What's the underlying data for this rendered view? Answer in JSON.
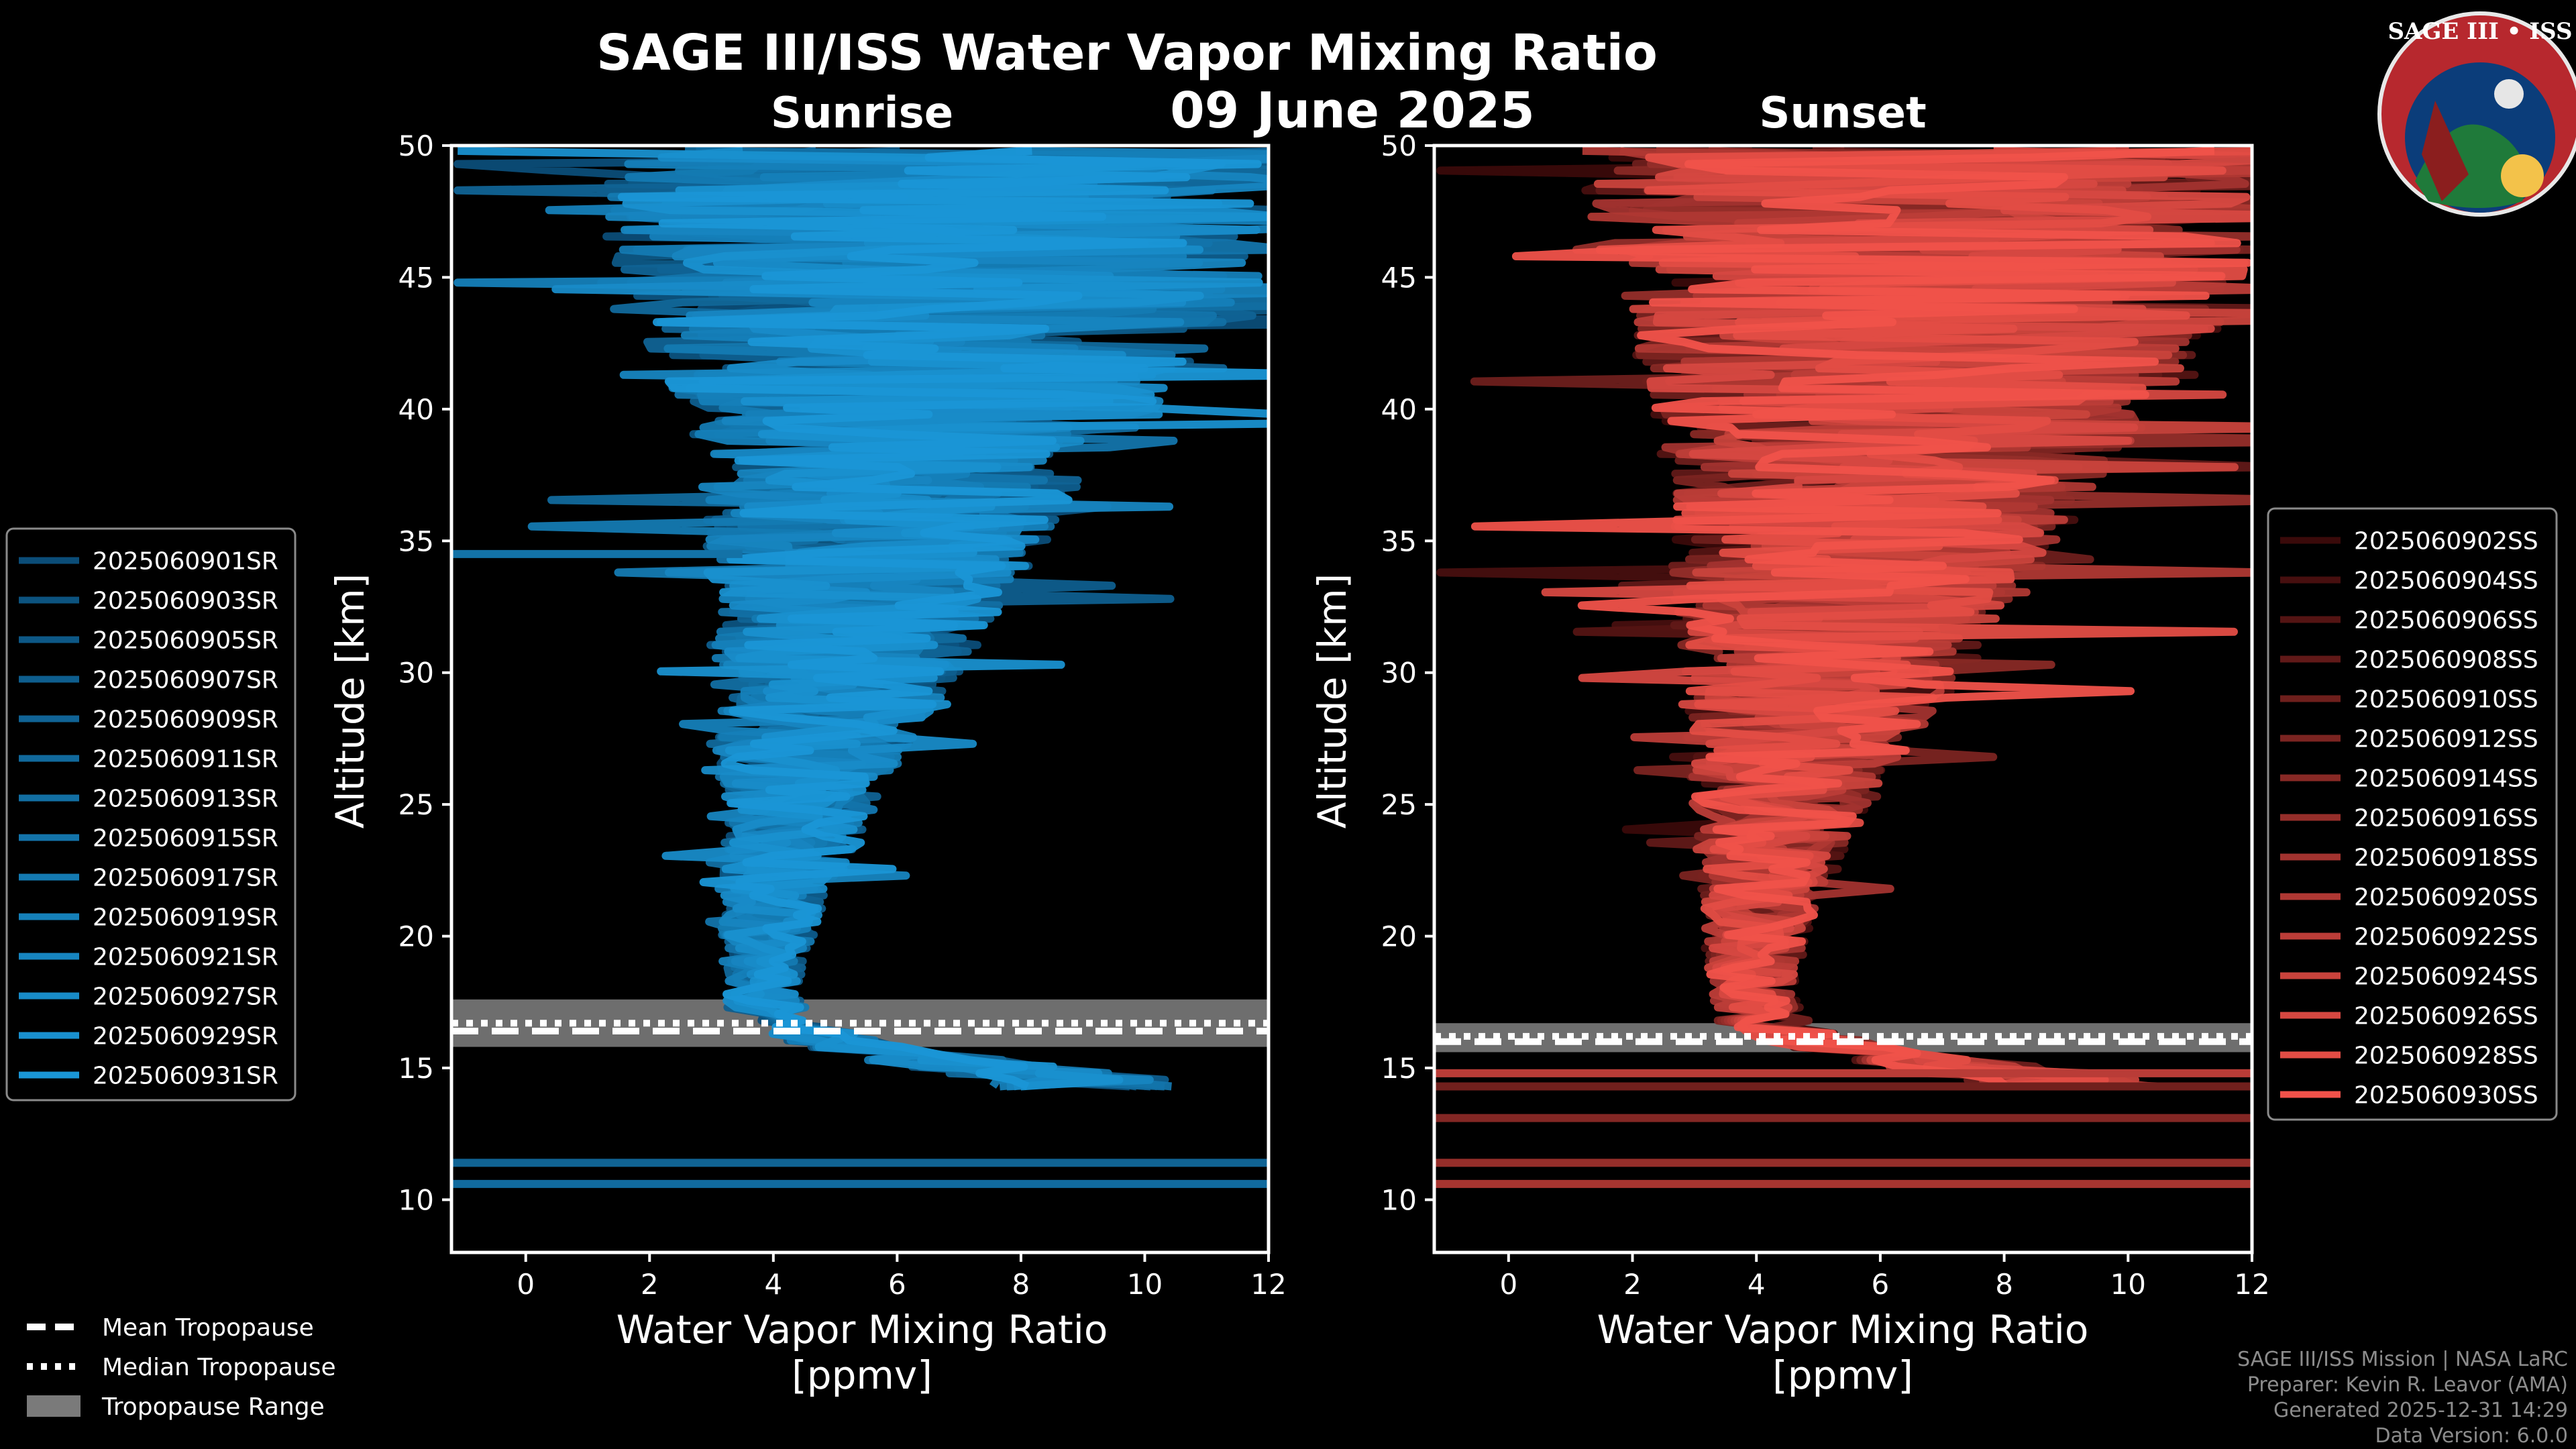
{
  "title": "SAGE III/ISS Water Vapor Mixing Ratio",
  "date": "09 June 2025",
  "logo": {
    "text": "SAGE III • ISS",
    "colors": {
      "ring": "#b7282e",
      "inner": "#0b3d7a"
    }
  },
  "credits": [
    "SAGE III/ISS Mission | NASA LaRC",
    "Preparer: Kevin R. Leavor (AMA)",
    "Generated 2025-12-31 14:29",
    "Data Version: 6.0.0"
  ],
  "tropo_legend": [
    {
      "label": "Mean Tropopause",
      "style": "dashed"
    },
    {
      "label": "Median Tropopause",
      "style": "dotted"
    },
    {
      "label": "Tropopause Range",
      "style": "box"
    }
  ],
  "chart_data": [
    {
      "type": "line",
      "panel": "sunrise",
      "title": "Sunrise",
      "xlabel": "Water Vapor Mixing Ratio\n[ppmv]",
      "ylabel": "Altitude [km]",
      "xlim": [
        -1.2,
        12
      ],
      "ylim": [
        8,
        50
      ],
      "xticks": [
        0,
        2,
        4,
        6,
        8,
        10,
        12
      ],
      "yticks": [
        10,
        15,
        20,
        25,
        30,
        35,
        40,
        45,
        50
      ],
      "color_dark": "#0b4d78",
      "color_light": "#1a96d6",
      "series": [
        "2025060901SR",
        "2025060903SR",
        "2025060905SR",
        "2025060907SR",
        "2025060909SR",
        "2025060911SR",
        "2025060913SR",
        "2025060915SR",
        "2025060917SR",
        "2025060919SR",
        "2025060921SR",
        "2025060927SR",
        "2025060929SR",
        "2025060931SR"
      ],
      "profile_median": [
        [
          14.5,
          9.0
        ],
        [
          15.0,
          7.5
        ],
        [
          15.5,
          6.0
        ],
        [
          16.0,
          5.0
        ],
        [
          16.5,
          4.3
        ],
        [
          17.0,
          3.9
        ],
        [
          18.0,
          3.8
        ],
        [
          20.0,
          3.9
        ],
        [
          22.0,
          4.1
        ],
        [
          25.0,
          4.4
        ],
        [
          28.0,
          4.7
        ],
        [
          30.0,
          5.0
        ],
        [
          33.0,
          5.4
        ],
        [
          36.0,
          5.8
        ],
        [
          39.0,
          6.2
        ],
        [
          42.0,
          6.5
        ],
        [
          45.0,
          6.8
        ],
        [
          48.0,
          6.9
        ],
        [
          50.0,
          7.0
        ]
      ],
      "profile_spread": [
        [
          14.5,
          1.5
        ],
        [
          16.0,
          0.8
        ],
        [
          18.0,
          0.6
        ],
        [
          22.0,
          0.9
        ],
        [
          26.0,
          1.4
        ],
        [
          30.0,
          2.0
        ],
        [
          34.0,
          2.6
        ],
        [
          38.0,
          3.2
        ],
        [
          42.0,
          4.5
        ],
        [
          46.0,
          5.5
        ],
        [
          50.0,
          6.0
        ]
      ],
      "flat_segments": [
        [
          11.4,
          -1.2,
          12
        ],
        [
          10.6,
          -1.2,
          12
        ],
        [
          34.5,
          -1.2,
          3.5
        ]
      ],
      "tropopause": {
        "mean": 16.4,
        "median": 16.7,
        "min": 15.8,
        "max": 17.6
      }
    },
    {
      "type": "line",
      "panel": "sunset",
      "title": "Sunset",
      "xlabel": "Water Vapor Mixing Ratio\n[ppmv]",
      "ylabel": "Altitude [km]",
      "xlim": [
        -1.2,
        12
      ],
      "ylim": [
        8,
        50
      ],
      "xticks": [
        0,
        2,
        4,
        6,
        8,
        10,
        12
      ],
      "yticks": [
        10,
        15,
        20,
        25,
        30,
        35,
        40,
        45,
        50
      ],
      "color_dark": "#3a0a0a",
      "color_light": "#f0524a",
      "series": [
        "2025060902SS",
        "2025060904SS",
        "2025060906SS",
        "2025060908SS",
        "2025060910SS",
        "2025060912SS",
        "2025060914SS",
        "2025060916SS",
        "2025060918SS",
        "2025060920SS",
        "2025060922SS",
        "2025060924SS",
        "2025060926SS",
        "2025060928SS",
        "2025060930SS"
      ],
      "profile_median": [
        [
          14.5,
          9.0
        ],
        [
          15.0,
          7.5
        ],
        [
          15.5,
          6.0
        ],
        [
          16.0,
          5.0
        ],
        [
          16.5,
          4.3
        ],
        [
          17.0,
          4.0
        ],
        [
          18.0,
          3.9
        ],
        [
          20.0,
          4.0
        ],
        [
          22.0,
          4.1
        ],
        [
          25.0,
          4.4
        ],
        [
          28.0,
          4.8
        ],
        [
          30.0,
          5.1
        ],
        [
          33.0,
          5.5
        ],
        [
          36.0,
          5.9
        ],
        [
          39.0,
          6.3
        ],
        [
          42.0,
          6.6
        ],
        [
          45.0,
          6.8
        ],
        [
          48.0,
          6.9
        ],
        [
          50.0,
          7.0
        ]
      ],
      "profile_spread": [
        [
          14.5,
          1.5
        ],
        [
          16.0,
          0.8
        ],
        [
          18.0,
          0.7
        ],
        [
          22.0,
          1.0
        ],
        [
          26.0,
          1.6
        ],
        [
          30.0,
          2.4
        ],
        [
          34.0,
          3.0
        ],
        [
          38.0,
          3.6
        ],
        [
          42.0,
          4.6
        ],
        [
          46.0,
          5.5
        ],
        [
          50.0,
          6.0
        ]
      ],
      "flat_segments": [
        [
          14.3,
          -1.2,
          12
        ],
        [
          13.1,
          -1.2,
          12
        ],
        [
          11.4,
          -1.2,
          12
        ],
        [
          10.6,
          -1.2,
          12
        ],
        [
          14.8,
          -1.2,
          12
        ]
      ],
      "tropopause": {
        "mean": 16.0,
        "median": 16.2,
        "min": 15.6,
        "max": 16.7
      }
    }
  ]
}
